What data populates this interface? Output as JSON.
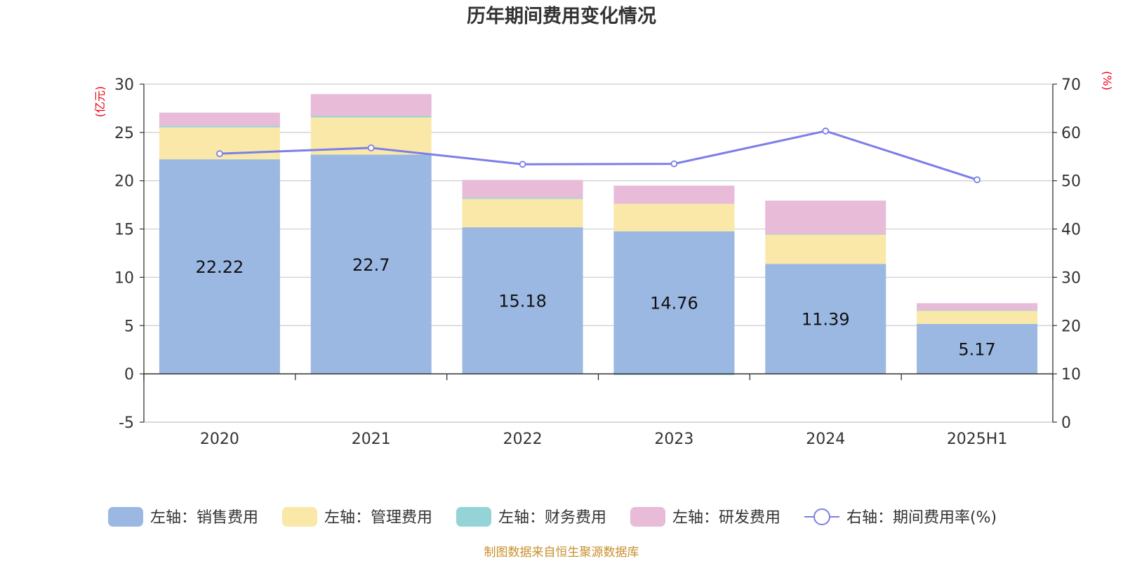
{
  "chart_data": {
    "type": "bar",
    "stacked": true,
    "title": "历年期间费用变化情况",
    "categories": [
      "2020",
      "2021",
      "2022",
      "2023",
      "2024",
      "2025H1"
    ],
    "y_left": {
      "unit": "(亿元)",
      "ticks": [
        "-5",
        "0",
        "5",
        "10",
        "15",
        "20",
        "25",
        "30"
      ],
      "range": [
        -5,
        30
      ]
    },
    "y_right": {
      "unit": "(%)",
      "ticks": [
        "0",
        "10",
        "20",
        "30",
        "40",
        "50",
        "60",
        "70"
      ],
      "range": [
        0,
        70
      ]
    },
    "series": [
      {
        "name": "左轴：销售费用",
        "type": "bar",
        "axis": "left",
        "color": "#9bb8e2",
        "values": [
          22.22,
          22.7,
          15.18,
          14.76,
          11.39,
          5.17
        ],
        "labels": [
          "22.22",
          "22.7",
          "15.18",
          "14.76",
          "11.39",
          "5.17"
        ]
      },
      {
        "name": "左轴：管理费用",
        "type": "bar",
        "axis": "left",
        "color": "#f9e8a8",
        "values": [
          3.3,
          3.85,
          2.95,
          2.85,
          3.05,
          1.4
        ]
      },
      {
        "name": "左轴：财务费用",
        "type": "bar",
        "axis": "left",
        "color": "#94d4d6",
        "values": [
          0.15,
          0.15,
          0.12,
          -0.12,
          0.05,
          0.03
        ]
      },
      {
        "name": "左轴：研发费用",
        "type": "bar",
        "axis": "left",
        "color": "#e8bbd9",
        "values": [
          1.38,
          2.27,
          1.83,
          1.88,
          3.45,
          0.72
        ]
      },
      {
        "name": "右轴：期间费用率(%)",
        "type": "line",
        "axis": "right",
        "color": "#7b7fe8",
        "values": [
          55.6,
          56.8,
          53.4,
          53.5,
          60.3,
          50.2
        ]
      }
    ],
    "grid": true,
    "legend": "bottom"
  },
  "source": "制图数据来自恒生聚源数据库"
}
